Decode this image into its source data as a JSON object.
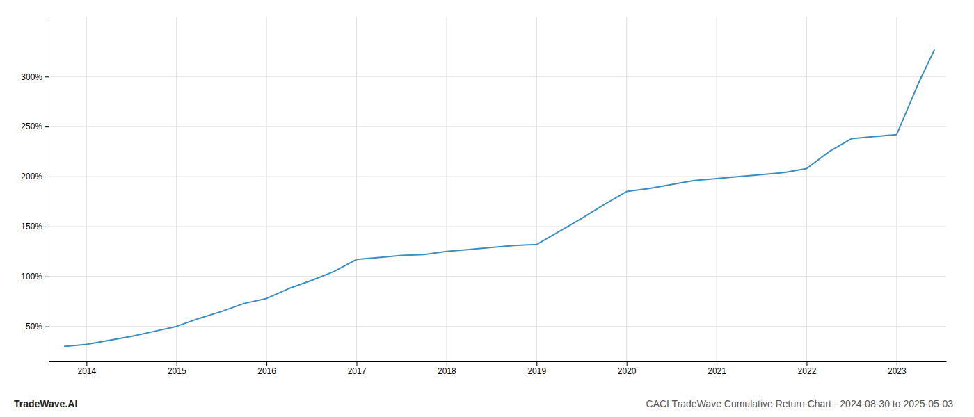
{
  "chart_data": {
    "type": "line",
    "title": "CACI TradeWave Cumulative Return Chart - 2024-08-30 to 2025-05-03",
    "annotations": [
      "TradeWave.AI"
    ],
    "x": [
      2013.75,
      2014.0,
      2014.25,
      2014.5,
      2014.75,
      2015.0,
      2015.25,
      2015.5,
      2015.75,
      2016.0,
      2016.25,
      2016.5,
      2016.75,
      2017.0,
      2017.25,
      2017.5,
      2017.75,
      2018.0,
      2018.25,
      2018.5,
      2018.75,
      2019.0,
      2019.25,
      2019.5,
      2019.75,
      2020.0,
      2020.25,
      2020.5,
      2020.75,
      2021.0,
      2021.25,
      2021.5,
      2021.75,
      2022.0,
      2022.25,
      2022.5,
      2022.75,
      2023.0,
      2023.25,
      2023.42
    ],
    "values": [
      30,
      32,
      36,
      40,
      45,
      50,
      58,
      65,
      73,
      78,
      88,
      96,
      105,
      117,
      119,
      121,
      122,
      125,
      127,
      129,
      131,
      132,
      145,
      158,
      172,
      185,
      188,
      192,
      196,
      198,
      200,
      202,
      204,
      208,
      225,
      238,
      240,
      242,
      295,
      327
    ],
    "color": "#3a8fbf",
    "xlim": [
      2013.58,
      2023.55
    ],
    "xticks": [
      2014,
      2015,
      2016,
      2017,
      2018,
      2019,
      2020,
      2021,
      2022,
      2023
    ],
    "ylim": [
      15,
      360
    ],
    "yticks": [
      {
        "value": 50,
        "label": "50%"
      },
      {
        "value": 100,
        "label": "100%"
      },
      {
        "value": 150,
        "label": "150%"
      },
      {
        "value": 200,
        "label": "200%"
      },
      {
        "value": 250,
        "label": "250%"
      },
      {
        "value": 300,
        "label": "300%"
      }
    ],
    "grid": true
  }
}
